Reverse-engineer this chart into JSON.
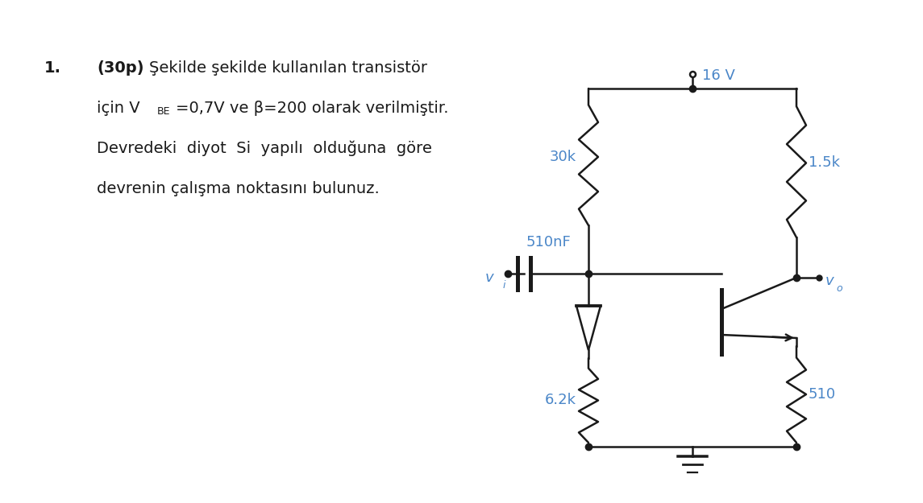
{
  "bg_color": "#ffffff",
  "text_color": "#1a1a1a",
  "circuit_color": "#1a1a1a",
  "label_color": "#4a86c8",
  "fig_width": 11.45,
  "fig_height": 6.25,
  "label_16V": "16 V",
  "label_30k": "30k",
  "label_510nF": "510nF",
  "label_vi": "v",
  "label_vi_sub": "i",
  "label_vo": "v",
  "label_vo_sub": "o",
  "label_6k2": "6.2k",
  "label_15k": "1.5k",
  "label_510": "510"
}
